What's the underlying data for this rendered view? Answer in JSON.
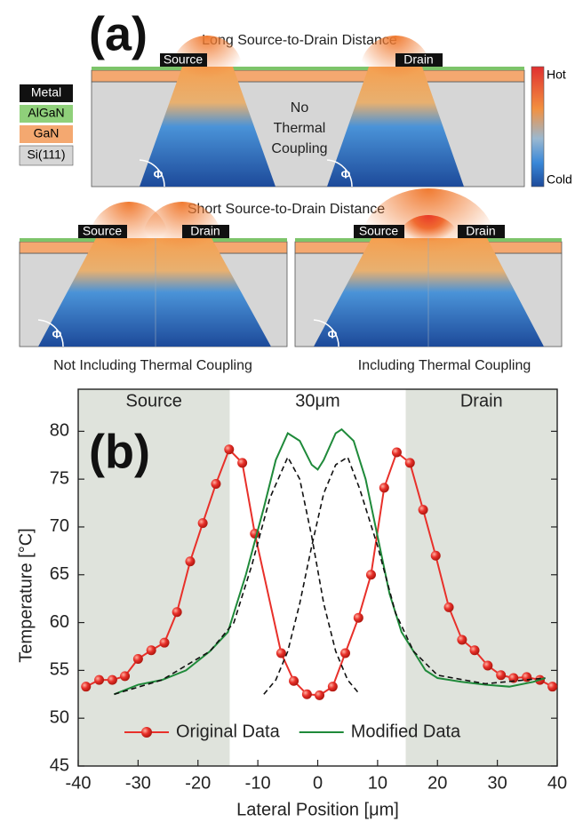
{
  "diagram": {
    "label": "(a)",
    "layers": [
      "Metal",
      "AlGaN",
      "GaN",
      "Si(111)"
    ],
    "colorbar": {
      "max": "Hot",
      "min": "Cold"
    },
    "long": {
      "title": "Long Source-to-Drain Distance",
      "source": "Source",
      "drain": "Drain",
      "note": [
        "No",
        "Thermal",
        "Coupling"
      ],
      "angle": [
        "Φ",
        "Φ"
      ]
    },
    "short": {
      "title": "Short Source-to-Drain Distance",
      "panels": [
        {
          "source": "Source",
          "drain": "Drain",
          "caption": "Not Including Thermal Coupling",
          "angle": "Φ"
        },
        {
          "source": "Source",
          "drain": "Drain",
          "caption": "Including Thermal Coupling",
          "angle": "Φ"
        }
      ]
    }
  },
  "chart_data": {
    "type": "line",
    "label": "(b)",
    "x_label": "Lateral Position [μm]",
    "y_label": "Temperature [°C]",
    "xlim": [
      -40,
      40
    ],
    "xticks": [
      -40,
      -30,
      -20,
      -10,
      0,
      10,
      20,
      30,
      40
    ],
    "ylim": [
      45,
      84.4
    ],
    "yticks": [
      45,
      50,
      55,
      60,
      65,
      70,
      75,
      80
    ],
    "regions": [
      {
        "label": "Source",
        "xlim": [
          -40,
          -14.7
        ],
        "color": "#dfe3dc"
      },
      {
        "label": "Drain",
        "xlim": [
          14.7,
          40
        ],
        "color": "#dfe3dc"
      }
    ],
    "annotation": "30μm",
    "legend": "bottom",
    "series": [
      {
        "name": "Original Data",
        "color": "#e8302a",
        "marker": true,
        "x": [
          -38.7,
          -36.5,
          -34.3,
          -32.2,
          -30.0,
          -27.8,
          -25.6,
          -23.5,
          -21.3,
          -19.2,
          -17.0,
          -14.8,
          -12.6,
          -10.5,
          -6.1,
          -4.0,
          -1.8,
          0.3,
          2.5,
          4.6,
          6.8,
          8.9,
          11.1,
          13.2,
          15.4,
          17.6,
          19.7,
          21.9,
          24.1,
          26.2,
          28.4,
          30.6,
          32.7,
          34.9,
          37.1,
          39.2
        ],
        "values": [
          53.3,
          54.0,
          54.0,
          54.4,
          56.2,
          57.1,
          57.9,
          61.1,
          66.4,
          70.4,
          74.5,
          78.1,
          76.7,
          69.3,
          56.8,
          53.9,
          52.5,
          52.4,
          53.3,
          56.8,
          60.5,
          65.0,
          74.1,
          77.8,
          76.7,
          71.8,
          67.0,
          61.6,
          58.2,
          57.1,
          55.5,
          54.5,
          54.2,
          54.3,
          54.0,
          53.3
        ]
      },
      {
        "name": "Modified Data",
        "color": "#1f8a3a",
        "marker": false,
        "x": [
          -34,
          -30,
          -26,
          -22,
          -18,
          -15,
          -12,
          -9,
          -7,
          -5,
          -3,
          -1,
          0,
          1,
          3,
          4,
          6,
          8,
          10,
          12,
          14,
          16,
          18,
          20,
          24,
          28,
          32,
          36,
          38
        ],
        "values": [
          52.5,
          53.5,
          54.0,
          55.0,
          57.0,
          59.0,
          65.0,
          72.0,
          77.0,
          79.8,
          79.0,
          76.5,
          76.0,
          77.0,
          79.8,
          80.2,
          79.0,
          75.0,
          69.0,
          63.0,
          59.0,
          57.0,
          55.0,
          54.2,
          53.8,
          53.5,
          53.3,
          53.8,
          54.2
        ]
      },
      {
        "color": "#111111",
        "dash": true,
        "marker": false,
        "x": [
          -34,
          -26,
          -18,
          -14,
          -11,
          -8,
          -5,
          -3,
          -1,
          1,
          3,
          5,
          7
        ],
        "values": [
          52.5,
          54.0,
          57.0,
          60.0,
          66.0,
          73.0,
          77.3,
          75.0,
          69.0,
          62.0,
          57.0,
          54.0,
          52.5
        ]
      },
      {
        "color": "#111111",
        "dash": true,
        "marker": false,
        "x": [
          -9,
          -7,
          -5,
          -3,
          -1,
          1,
          3,
          5,
          7,
          10,
          13,
          16,
          20,
          28,
          38
        ],
        "values": [
          52.5,
          54.0,
          57.0,
          62.0,
          68.0,
          73.5,
          76.5,
          77.3,
          74.0,
          68.0,
          61.0,
          57.0,
          54.5,
          53.6,
          54.2
        ]
      }
    ]
  }
}
